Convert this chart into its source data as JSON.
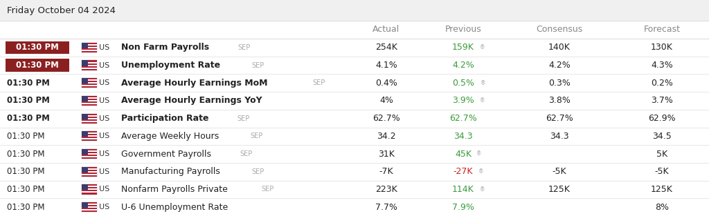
{
  "title": "Friday October 04 2024",
  "bg_color": "#ffffff",
  "title_bg": "#f0f0f0",
  "separator_color": "#dddddd",
  "col_header_color": "#888888",
  "rows": [
    {
      "time": "01:30 PM",
      "time_bold": true,
      "time_bg": "#8B2020",
      "time_text_color": "#ffffff",
      "indicator": "Non Farm Payrolls",
      "sep_label": "SEP",
      "actual": "254K",
      "actual_color": "#222222",
      "previous": "159K",
      "previous_color": "#3a9a3a",
      "previous_icon": true,
      "consensus": "140K",
      "consensus_color": "#222222",
      "forecast": "130K",
      "forecast_color": "#222222"
    },
    {
      "time": "01:30 PM",
      "time_bold": true,
      "time_bg": "#8B2020",
      "time_text_color": "#ffffff",
      "indicator": "Unemployment Rate",
      "sep_label": "SEP",
      "actual": "4.1%",
      "actual_color": "#222222",
      "previous": "4.2%",
      "previous_color": "#3a9a3a",
      "previous_icon": false,
      "consensus": "4.2%",
      "consensus_color": "#222222",
      "forecast": "4.3%",
      "forecast_color": "#222222"
    },
    {
      "time": "01:30 PM",
      "time_bold": true,
      "time_bg": null,
      "time_text_color": "#222222",
      "indicator": "Average Hourly Earnings MoM",
      "sep_label": "SEP",
      "actual": "0.4%",
      "actual_color": "#222222",
      "previous": "0.5%",
      "previous_color": "#3a9a3a",
      "previous_icon": true,
      "consensus": "0.3%",
      "consensus_color": "#222222",
      "forecast": "0.2%",
      "forecast_color": "#222222"
    },
    {
      "time": "01:30 PM",
      "time_bold": true,
      "time_bg": null,
      "time_text_color": "#222222",
      "indicator": "Average Hourly Earnings YoY",
      "sep_label": null,
      "actual": "4%",
      "actual_color": "#222222",
      "previous": "3.9%",
      "previous_color": "#3a9a3a",
      "previous_icon": true,
      "consensus": "3.8%",
      "consensus_color": "#222222",
      "forecast": "3.7%",
      "forecast_color": "#222222"
    },
    {
      "time": "01:30 PM",
      "time_bold": true,
      "time_bg": null,
      "time_text_color": "#222222",
      "indicator": "Participation Rate",
      "sep_label": "SEP",
      "actual": "62.7%",
      "actual_color": "#222222",
      "previous": "62.7%",
      "previous_color": "#3a9a3a",
      "previous_icon": false,
      "consensus": "62.7%",
      "consensus_color": "#222222",
      "forecast": "62.9%",
      "forecast_color": "#222222"
    },
    {
      "time": "01:30 PM",
      "time_bold": false,
      "time_bg": null,
      "time_text_color": "#222222",
      "indicator": "Average Weekly Hours",
      "sep_label": "SEP",
      "actual": "34.2",
      "actual_color": "#222222",
      "previous": "34.3",
      "previous_color": "#3a9a3a",
      "previous_icon": false,
      "consensus": "34.3",
      "consensus_color": "#222222",
      "forecast": "34.5",
      "forecast_color": "#222222"
    },
    {
      "time": "01:30 PM",
      "time_bold": false,
      "time_bg": null,
      "time_text_color": "#222222",
      "indicator": "Government Payrolls",
      "sep_label": "SEP",
      "actual": "31K",
      "actual_color": "#222222",
      "previous": "45K",
      "previous_color": "#3a9a3a",
      "previous_icon": true,
      "consensus": "",
      "consensus_color": "#222222",
      "forecast": "5K",
      "forecast_color": "#222222"
    },
    {
      "time": "01:30 PM",
      "time_bold": false,
      "time_bg": null,
      "time_text_color": "#222222",
      "indicator": "Manufacturing Payrolls",
      "sep_label": "SEP",
      "actual": "-7K",
      "actual_color": "#222222",
      "previous": "-27K",
      "previous_color": "#cc2222",
      "previous_icon": true,
      "consensus": "-5K",
      "consensus_color": "#222222",
      "forecast": "-5K",
      "forecast_color": "#222222"
    },
    {
      "time": "01:30 PM",
      "time_bold": false,
      "time_bg": null,
      "time_text_color": "#222222",
      "indicator": "Nonfarm Payrolls Private",
      "sep_label": "SEP",
      "actual": "223K",
      "actual_color": "#222222",
      "previous": "114K",
      "previous_color": "#3a9a3a",
      "previous_icon": true,
      "consensus": "125K",
      "consensus_color": "#222222",
      "forecast": "125K",
      "forecast_color": "#222222"
    },
    {
      "time": "01:30 PM",
      "time_bold": false,
      "time_bg": null,
      "time_text_color": "#222222",
      "indicator": "U-6 Unemployment Rate",
      "sep_label": null,
      "actual": "7.7%",
      "actual_color": "#222222",
      "previous": "7.9%",
      "previous_color": "#3a9a3a",
      "previous_icon": false,
      "consensus": "",
      "consensus_color": "#222222",
      "forecast": "8%",
      "forecast_color": "#222222"
    }
  ],
  "title_fontsize": 9.5,
  "header_fontsize": 9,
  "cell_fontsize": 9,
  "sep_fontsize": 7
}
